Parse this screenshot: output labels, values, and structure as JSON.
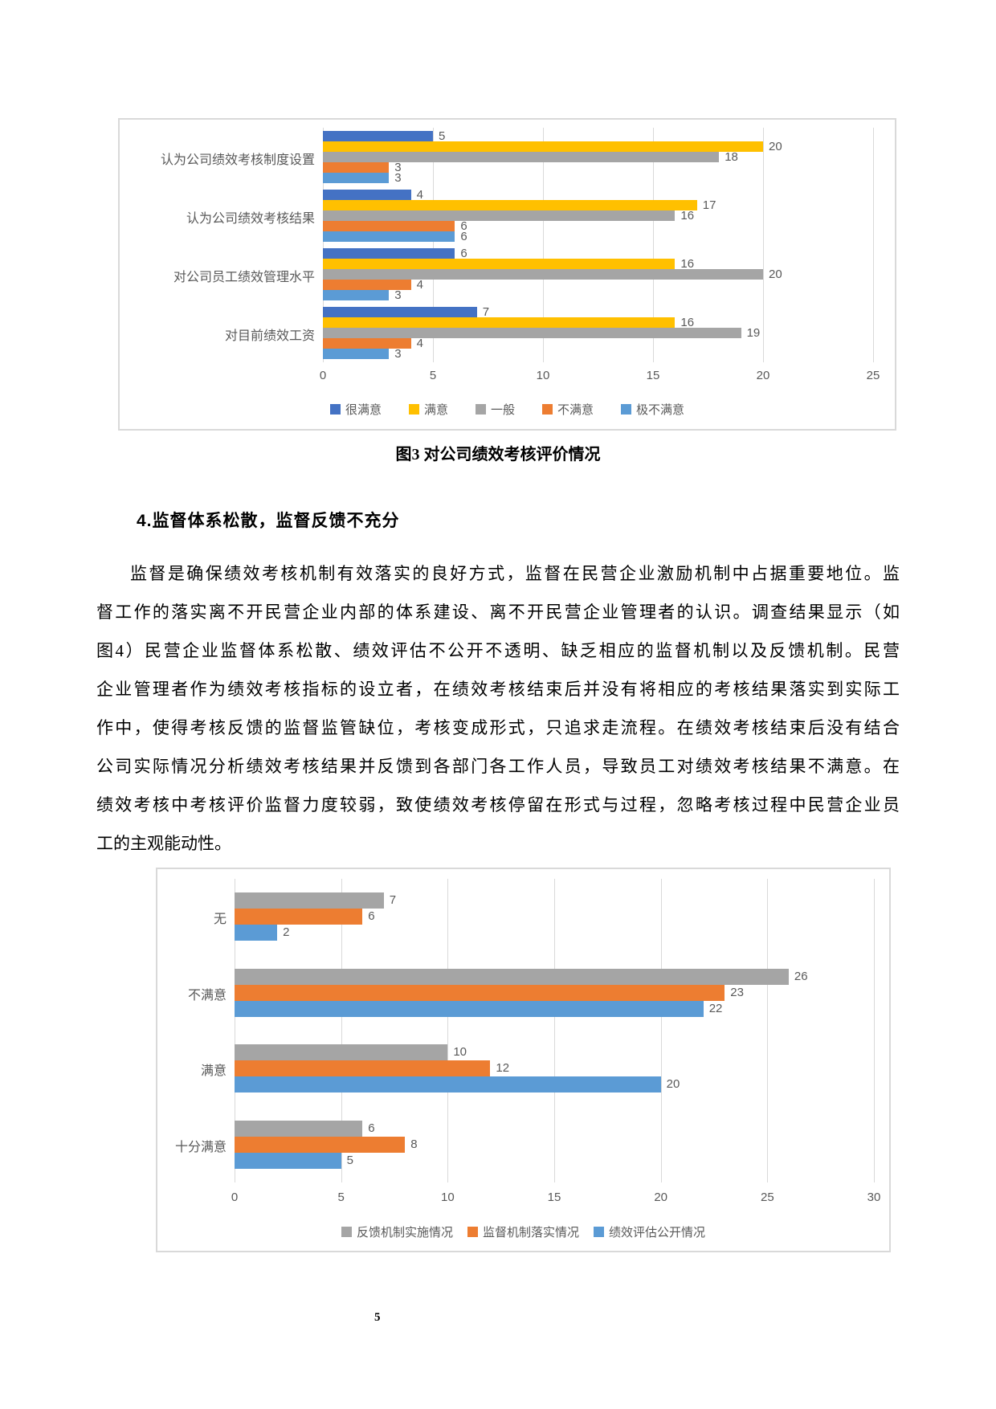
{
  "page": {
    "number": "5"
  },
  "figure3": {
    "caption": "图3 对公司绩效考核评价情况",
    "chart_data": {
      "type": "bar",
      "orientation": "horizontal",
      "categories": [
        "认为公司绩效考核制度设置",
        "认为公司绩效考核结果",
        "对公司员工绩效管理水平",
        "对目前绩效工资"
      ],
      "series": [
        {
          "name": "很满意",
          "color": "#4472C4",
          "values": [
            5,
            4,
            6,
            7
          ]
        },
        {
          "name": "满意",
          "color": "#FFC000",
          "values": [
            20,
            17,
            16,
            16
          ]
        },
        {
          "name": "一般",
          "color": "#A5A5A5",
          "values": [
            18,
            16,
            20,
            19
          ]
        },
        {
          "name": "不满意",
          "color": "#ED7D31",
          "values": [
            3,
            6,
            4,
            4
          ]
        },
        {
          "name": "极不满意",
          "color": "#5B9BD5",
          "values": [
            3,
            6,
            3,
            3
          ]
        }
      ],
      "xlim": [
        0,
        25
      ],
      "xticks": [
        0,
        5,
        10,
        15,
        20,
        25
      ],
      "grid": true,
      "legend_position": "bottom",
      "value_labels": true,
      "title": ""
    }
  },
  "section": {
    "heading": "4.监督体系松散，监督反馈不充分",
    "paragraph_lines": [
      "监督是确保绩效考核机制有效落实的良好方式，监督在民营企业激励机制中占据重要地位。监",
      "督工作的落实离不开民营企业内部的体系建设、离不开民营企业管理者的认识。调查结果显示（如",
      "图4）民营企业监督体系松散、绩效评估不公开不透明、缺乏相应的监督机制以及反馈机制。民营",
      "企业管理者作为绩效考核指标的设立者，在绩效考核结束后并没有将相应的考核结果落实到实际工",
      "作中，使得考核反馈的监督监管缺位，考核变成形式，只追求走流程。在绩效考核结束后没有结合",
      "公司实际情况分析绩效考核结果并反馈到各部门各工作人员，导致员工对绩效考核结果不满意。在",
      "绩效考核中考核评价监督力度较弱，致使绩效考核停留在形式与过程，忽略考核过程中民营企业员",
      "工的主观能动性。"
    ]
  },
  "figure4": {
    "chart_data": {
      "type": "bar",
      "orientation": "horizontal",
      "categories": [
        "无",
        "不满意",
        "满意",
        "十分满意"
      ],
      "series": [
        {
          "name": "反馈机制实施情况",
          "color": "#A5A5A5",
          "values": [
            7,
            26,
            10,
            6
          ]
        },
        {
          "name": "监督机制落实情况",
          "color": "#ED7D31",
          "values": [
            6,
            23,
            12,
            8
          ]
        },
        {
          "name": "绩效评估公开情况",
          "color": "#5B9BD5",
          "values": [
            2,
            22,
            20,
            5
          ]
        }
      ],
      "xlim": [
        0,
        30
      ],
      "xticks": [
        0,
        5,
        10,
        15,
        20,
        25,
        30
      ],
      "grid": true,
      "legend_position": "bottom",
      "value_labels": true,
      "title": ""
    }
  }
}
